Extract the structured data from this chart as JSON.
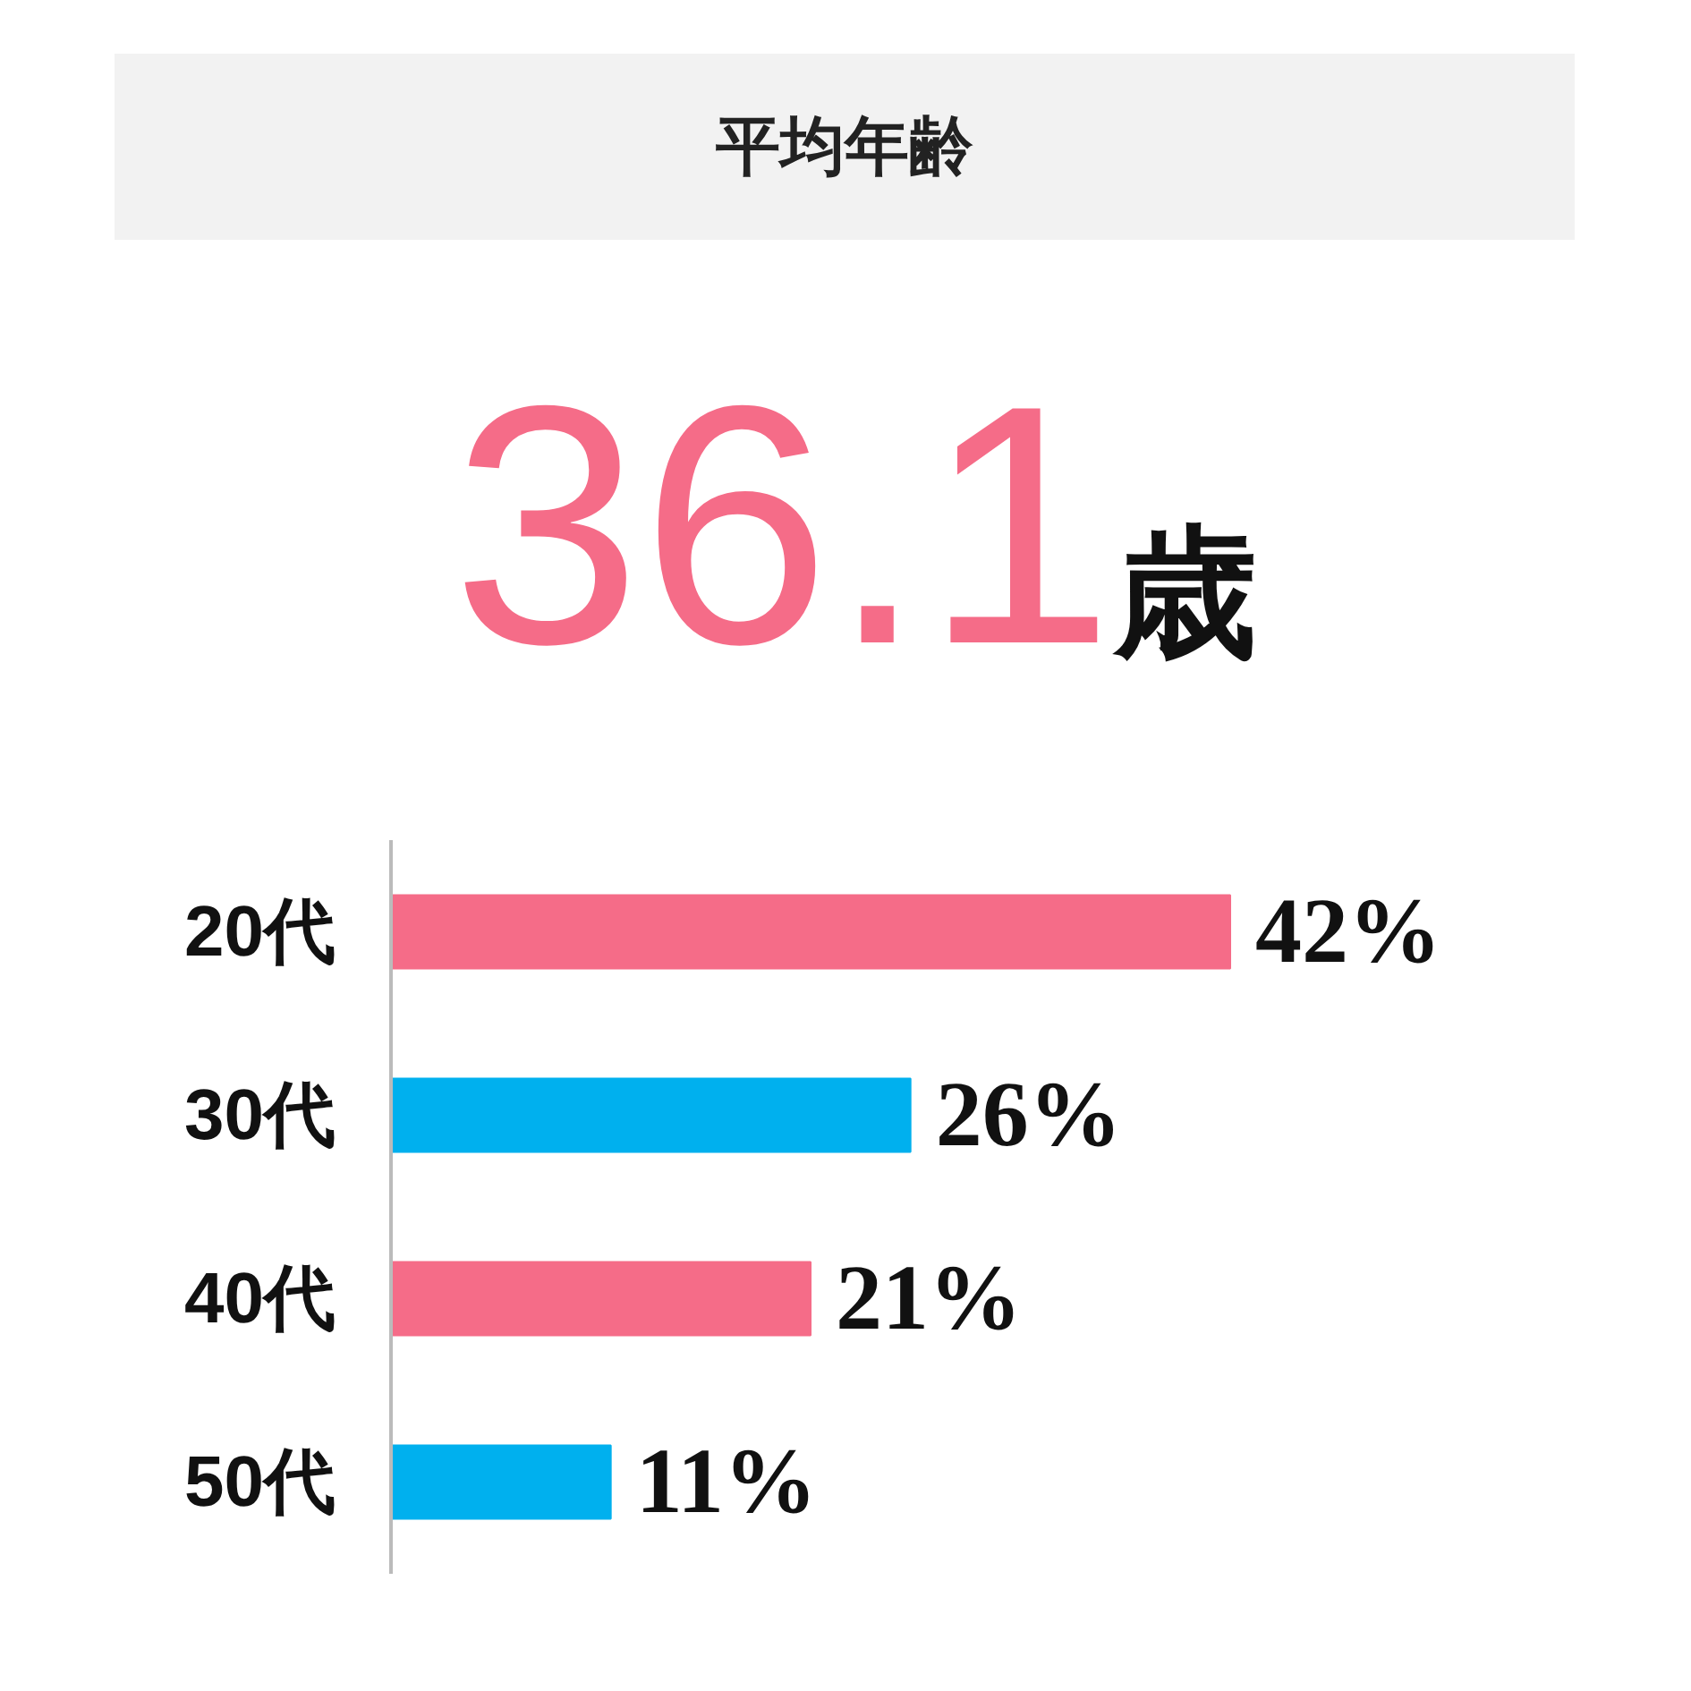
{
  "chart_data": {
    "type": "bar",
    "orientation": "horizontal",
    "title": "平均年齢",
    "annotations": [
      "36.1",
      "歳"
    ],
    "categories": [
      "20代",
      "30代",
      "40代",
      "50代"
    ],
    "values": [
      42,
      26,
      21,
      11
    ],
    "colors": [
      "#f56c88",
      "#00b0ee",
      "#f56c88",
      "#00b0ee"
    ],
    "value_labels": [
      "42%",
      "26%",
      "21%",
      "11%"
    ],
    "grid": false
  }
}
